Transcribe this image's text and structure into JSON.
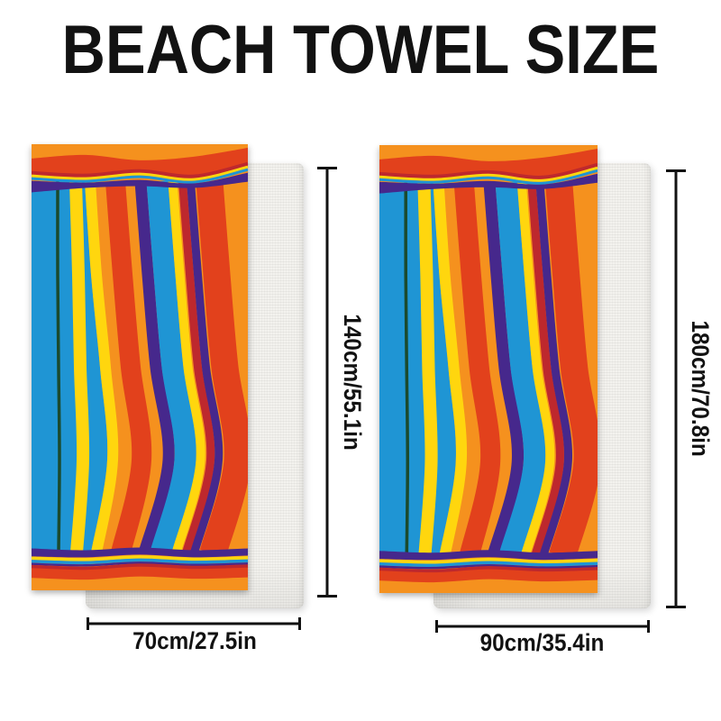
{
  "title": "BEACH TOWEL SIZE",
  "towels": [
    {
      "name": "small",
      "height_label": "140cm/55.1in",
      "width_label": "70cm/27.5in"
    },
    {
      "name": "large",
      "height_label": "180cm/70.8in",
      "width_label": "90cm/35.4in"
    }
  ],
  "palette": {
    "page_background": "#FFFFFF",
    "title_color": "#121212",
    "dimension_color": "#121212",
    "towel_orange": "#F5911E",
    "towel_red": "#E2411C",
    "towel_dark_red": "#BE282D",
    "towel_yellow": "#FFD60E",
    "towel_blue": "#1F95D4",
    "towel_purple": "#46288C",
    "towel_dark_green": "#1B4A2D",
    "folded_towel_white": "#F3F2EE"
  }
}
